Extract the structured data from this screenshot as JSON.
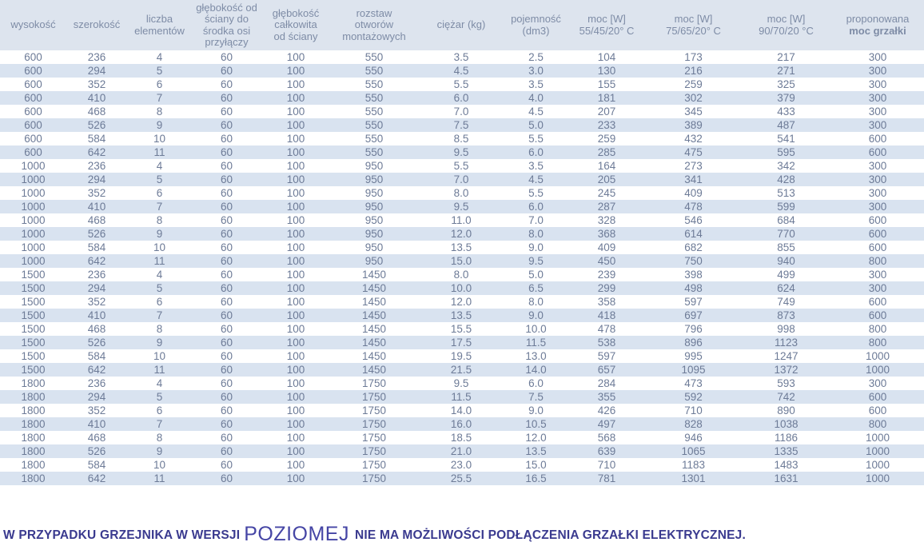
{
  "colors": {
    "header_bg": "#dde4ee",
    "stripe_bg": "#d9e3f0",
    "cell_text": "#6d7b97",
    "header_text": "#7e8ca6",
    "footnote_navy": "#3a3a8f",
    "highlight_blue": "#4545a5"
  },
  "table": {
    "columns": [
      {
        "lines": [
          "wysokość"
        ],
        "strong_line": null
      },
      {
        "lines": [
          "szerokość"
        ],
        "strong_line": null
      },
      {
        "lines": [
          "liczba",
          "elementów"
        ],
        "strong_line": null
      },
      {
        "lines": [
          "głębokość od",
          "ściany do",
          "środka osi",
          "przyłączy"
        ],
        "strong_line": null
      },
      {
        "lines": [
          "głębokość",
          "całkowita",
          "od ściany"
        ],
        "strong_line": null
      },
      {
        "lines": [
          "rozstaw",
          "otworów",
          "montażowych"
        ],
        "strong_line": null
      },
      {
        "lines": [
          "ciężar (kg)"
        ],
        "strong_line": null
      },
      {
        "lines": [
          "pojemność",
          "(dm3)"
        ],
        "strong_line": null
      },
      {
        "lines": [
          "moc [W]",
          "55/45/20° C"
        ],
        "strong_line": null
      },
      {
        "lines": [
          "moc [W]",
          "75/65/20° C"
        ],
        "strong_line": null
      },
      {
        "lines": [
          "moc [W]",
          "90/70/20 °C"
        ],
        "strong_line": null
      },
      {
        "lines": [
          "proponowana",
          "moc grzałki"
        ],
        "strong_line": 1
      }
    ],
    "rows": [
      [
        "600",
        "236",
        "4",
        "60",
        "100",
        "550",
        "3.5",
        "2.5",
        "104",
        "173",
        "217",
        "300"
      ],
      [
        "600",
        "294",
        "5",
        "60",
        "100",
        "550",
        "4.5",
        "3.0",
        "130",
        "216",
        "271",
        "300"
      ],
      [
        "600",
        "352",
        "6",
        "60",
        "100",
        "550",
        "5.5",
        "3.5",
        "155",
        "259",
        "325",
        "300"
      ],
      [
        "600",
        "410",
        "7",
        "60",
        "100",
        "550",
        "6.0",
        "4.0",
        "181",
        "302",
        "379",
        "300"
      ],
      [
        "600",
        "468",
        "8",
        "60",
        "100",
        "550",
        "7.0",
        "4.5",
        "207",
        "345",
        "433",
        "300"
      ],
      [
        "600",
        "526",
        "9",
        "60",
        "100",
        "550",
        "7.5",
        "5.0",
        "233",
        "389",
        "487",
        "300"
      ],
      [
        "600",
        "584",
        "10",
        "60",
        "100",
        "550",
        "8.5",
        "5.5",
        "259",
        "432",
        "541",
        "600"
      ],
      [
        "600",
        "642",
        "11",
        "60",
        "100",
        "550",
        "9.5",
        "6.0",
        "285",
        "475",
        "595",
        "600"
      ],
      [
        "1000",
        "236",
        "4",
        "60",
        "100",
        "950",
        "5.5",
        "3.5",
        "164",
        "273",
        "342",
        "300"
      ],
      [
        "1000",
        "294",
        "5",
        "60",
        "100",
        "950",
        "7.0",
        "4.5",
        "205",
        "341",
        "428",
        "300"
      ],
      [
        "1000",
        "352",
        "6",
        "60",
        "100",
        "950",
        "8.0",
        "5.5",
        "245",
        "409",
        "513",
        "300"
      ],
      [
        "1000",
        "410",
        "7",
        "60",
        "100",
        "950",
        "9.5",
        "6.0",
        "287",
        "478",
        "599",
        "300"
      ],
      [
        "1000",
        "468",
        "8",
        "60",
        "100",
        "950",
        "11.0",
        "7.0",
        "328",
        "546",
        "684",
        "600"
      ],
      [
        "1000",
        "526",
        "9",
        "60",
        "100",
        "950",
        "12.0",
        "8.0",
        "368",
        "614",
        "770",
        "600"
      ],
      [
        "1000",
        "584",
        "10",
        "60",
        "100",
        "950",
        "13.5",
        "9.0",
        "409",
        "682",
        "855",
        "600"
      ],
      [
        "1000",
        "642",
        "11",
        "60",
        "100",
        "950",
        "15.0",
        "9.5",
        "450",
        "750",
        "940",
        "800"
      ],
      [
        "1500",
        "236",
        "4",
        "60",
        "100",
        "1450",
        "8.0",
        "5.0",
        "239",
        "398",
        "499",
        "300"
      ],
      [
        "1500",
        "294",
        "5",
        "60",
        "100",
        "1450",
        "10.0",
        "6.5",
        "299",
        "498",
        "624",
        "300"
      ],
      [
        "1500",
        "352",
        "6",
        "60",
        "100",
        "1450",
        "12.0",
        "8.0",
        "358",
        "597",
        "749",
        "600"
      ],
      [
        "1500",
        "410",
        "7",
        "60",
        "100",
        "1450",
        "13.5",
        "9.0",
        "418",
        "697",
        "873",
        "600"
      ],
      [
        "1500",
        "468",
        "8",
        "60",
        "100",
        "1450",
        "15.5",
        "10.0",
        "478",
        "796",
        "998",
        "800"
      ],
      [
        "1500",
        "526",
        "9",
        "60",
        "100",
        "1450",
        "17.5",
        "11.5",
        "538",
        "896",
        "1123",
        "800"
      ],
      [
        "1500",
        "584",
        "10",
        "60",
        "100",
        "1450",
        "19.5",
        "13.0",
        "597",
        "995",
        "1247",
        "1000"
      ],
      [
        "1500",
        "642",
        "11",
        "60",
        "100",
        "1450",
        "21.5",
        "14.0",
        "657",
        "1095",
        "1372",
        "1000"
      ],
      [
        "1800",
        "236",
        "4",
        "60",
        "100",
        "1750",
        "9.5",
        "6.0",
        "284",
        "473",
        "593",
        "300"
      ],
      [
        "1800",
        "294",
        "5",
        "60",
        "100",
        "1750",
        "11.5",
        "7.5",
        "355",
        "592",
        "742",
        "600"
      ],
      [
        "1800",
        "352",
        "6",
        "60",
        "100",
        "1750",
        "14.0",
        "9.0",
        "426",
        "710",
        "890",
        "600"
      ],
      [
        "1800",
        "410",
        "7",
        "60",
        "100",
        "1750",
        "16.0",
        "10.5",
        "497",
        "828",
        "1038",
        "800"
      ],
      [
        "1800",
        "468",
        "8",
        "60",
        "100",
        "1750",
        "18.5",
        "12.0",
        "568",
        "946",
        "1186",
        "1000"
      ],
      [
        "1800",
        "526",
        "9",
        "60",
        "100",
        "1750",
        "21.0",
        "13.5",
        "639",
        "1065",
        "1335",
        "1000"
      ],
      [
        "1800",
        "584",
        "10",
        "60",
        "100",
        "1750",
        "23.0",
        "15.0",
        "710",
        "1183",
        "1483",
        "1000"
      ],
      [
        "1800",
        "642",
        "11",
        "60",
        "100",
        "1750",
        "25.5",
        "16.5",
        "781",
        "1301",
        "1631",
        "1000"
      ]
    ]
  },
  "footnote": {
    "prefix": "W PRZYPADKU GRZEJNIKA W WERSJI",
    "highlight": "POZIOMEJ",
    "suffix": "NIE MA MOŻLIWOŚCI PODŁĄCZENIA GRZAŁKI ELEKTRYCZNEJ."
  }
}
